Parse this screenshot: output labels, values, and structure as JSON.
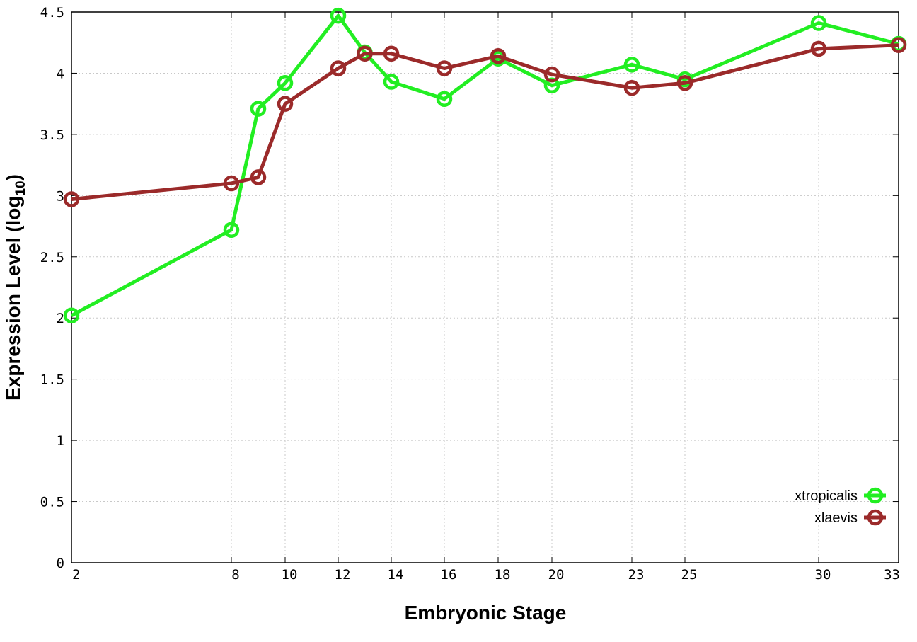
{
  "chart_data": {
    "type": "line",
    "title": "",
    "xlabel": "Embryonic Stage",
    "ylabel": "Expression Level (log",
    "ylabel_subscript": "10",
    "ylabel_suffix": ")",
    "x_ticks": [
      2,
      8,
      10,
      12,
      14,
      16,
      18,
      20,
      23,
      25,
      30,
      33
    ],
    "x_tick_labels": [
      "2",
      "8",
      "10",
      "12",
      "14",
      "16",
      "18",
      "20",
      "23",
      "25",
      "30",
      "33"
    ],
    "y_ticks": [
      0,
      0.5,
      1,
      1.5,
      2,
      2.5,
      3,
      3.5,
      4,
      4.5
    ],
    "y_tick_labels": [
      "0",
      "0.5",
      "1",
      "1.5",
      "2",
      "2.5",
      "3",
      "3.5",
      "4",
      "4.5"
    ],
    "ylim": [
      0,
      4.5
    ],
    "grid": true,
    "legend_position": "bottom-right",
    "series": [
      {
        "name": "xtropicalis",
        "color": "#22ee22",
        "points": [
          [
            2,
            2.02
          ],
          [
            8,
            2.72
          ],
          [
            9,
            3.71
          ],
          [
            10,
            3.92
          ],
          [
            12,
            4.47
          ],
          [
            13,
            4.17
          ],
          [
            14,
            3.93
          ],
          [
            16,
            3.79
          ],
          [
            18,
            4.12
          ],
          [
            20,
            3.9
          ],
          [
            23,
            4.07
          ],
          [
            25,
            3.95
          ],
          [
            30,
            4.41
          ],
          [
            33,
            4.24
          ]
        ]
      },
      {
        "name": "xlaevis",
        "color": "#9b2a2a",
        "points": [
          [
            2,
            2.97
          ],
          [
            8,
            3.1
          ],
          [
            9,
            3.15
          ],
          [
            10,
            3.75
          ],
          [
            12,
            4.04
          ],
          [
            13,
            4.16
          ],
          [
            14,
            4.16
          ],
          [
            16,
            4.04
          ],
          [
            18,
            4.14
          ],
          [
            20,
            3.99
          ],
          [
            23,
            3.88
          ],
          [
            25,
            3.92
          ],
          [
            30,
            4.2
          ],
          [
            33,
            4.23
          ]
        ]
      }
    ]
  }
}
